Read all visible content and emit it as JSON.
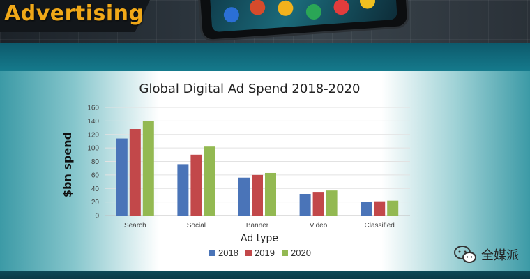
{
  "banner": {
    "title": "Advertising"
  },
  "watermark": {
    "text": "全媒派",
    "icon": "wechat-icon"
  },
  "chart_data": {
    "type": "bar",
    "title": "Global Digital Ad Spend 2018-2020",
    "xlabel": "Ad type",
    "ylabel": "$bn spend",
    "categories": [
      "Search",
      "Social",
      "Banner",
      "Video",
      "Classified"
    ],
    "series": [
      {
        "name": "2018",
        "color": "#4a74b8",
        "values": [
          114,
          76,
          56,
          32,
          20
        ]
      },
      {
        "name": "2019",
        "color": "#c2484a",
        "values": [
          128,
          90,
          60,
          35,
          21
        ]
      },
      {
        "name": "2020",
        "color": "#93b952",
        "values": [
          140,
          102,
          63,
          37,
          22
        ]
      }
    ],
    "ylim": [
      0,
      160
    ],
    "yticks": [
      0,
      20,
      40,
      60,
      80,
      100,
      120,
      140,
      160
    ],
    "grid": true,
    "legend": "bottom-center"
  }
}
